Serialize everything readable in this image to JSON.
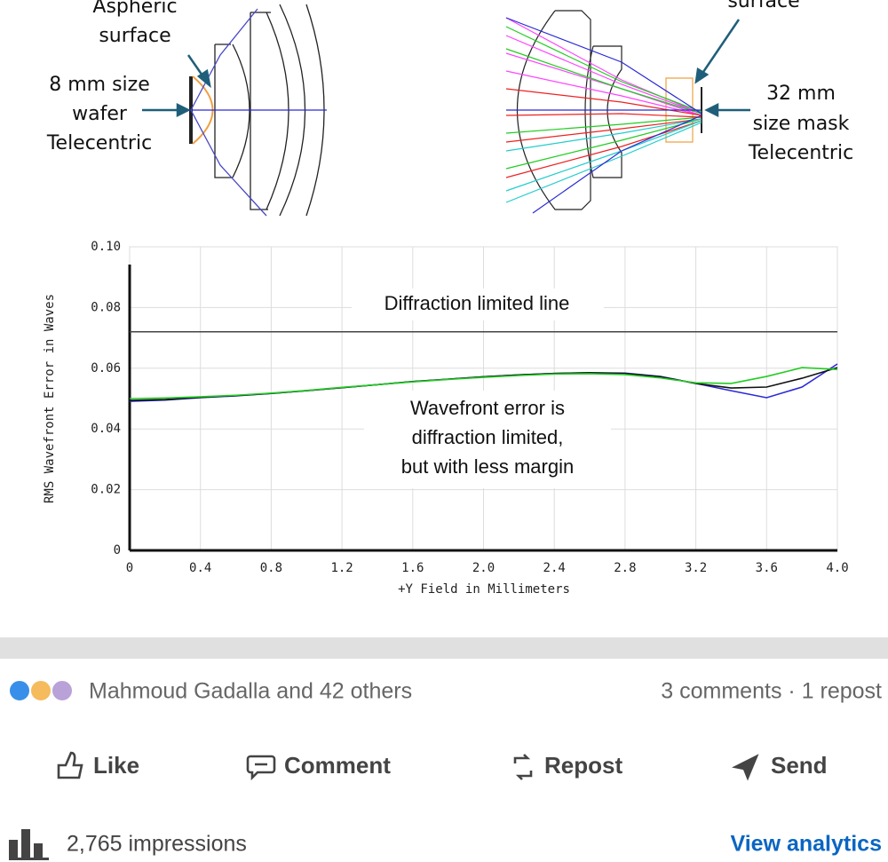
{
  "diagram": {
    "left_top_label": [
      "Aspheric",
      "surface"
    ],
    "left_side_label": [
      "8 mm size",
      "wafer",
      "Telecentric"
    ],
    "right_top_label": [
      "surface"
    ],
    "right_side_label": [
      "32 mm",
      "size mask",
      "Telecentric"
    ]
  },
  "chart_data": {
    "type": "line",
    "y_label": "RMS Wavefront Error in Waves",
    "x_label": "+Y Field in Millimeters",
    "xlim": [
      0,
      4
    ],
    "ylim": [
      0,
      0.1
    ],
    "xticks": [
      0,
      0.4,
      0.8,
      1.2,
      1.6,
      {
        "value": 2,
        "label": "2.0"
      },
      2.4,
      2.8,
      3.2,
      3.6,
      {
        "value": 4,
        "label": "4.0"
      }
    ],
    "yticks": [
      0,
      0.02,
      0.04,
      0.06,
      0.08,
      {
        "value": 0.1,
        "label": "0.10"
      }
    ],
    "grid": true,
    "reference_line": {
      "value": 0.072,
      "label": "Diffraction limited line",
      "color": "#444444"
    },
    "annotation": [
      "Wavefront error is",
      "diffraction limited,",
      "but with less margin"
    ],
    "x": [
      0,
      0.2,
      0.4,
      0.6,
      0.8,
      1.0,
      1.2,
      1.4,
      1.6,
      1.8,
      2.0,
      2.2,
      2.4,
      2.6,
      2.8,
      3.0,
      3.2,
      3.4,
      3.6,
      3.8,
      4.0
    ],
    "series": [
      {
        "color": "#2a2ad8",
        "values": [
          0.0491,
          0.0495,
          0.0503,
          0.0509,
          0.0517,
          0.0526,
          0.0536,
          0.0546,
          0.0556,
          0.0564,
          0.0572,
          0.0578,
          0.0583,
          0.0585,
          0.0584,
          0.0573,
          0.055,
          0.0526,
          0.0503,
          0.0538,
          0.0614
        ]
      },
      {
        "color": "#111111",
        "values": [
          0.0494,
          0.0497,
          0.0504,
          0.051,
          0.0517,
          0.0526,
          0.0536,
          0.0546,
          0.0556,
          0.0564,
          0.0572,
          0.0578,
          0.0583,
          0.0585,
          0.0583,
          0.0572,
          0.055,
          0.0535,
          0.0538,
          0.0567,
          0.0602
        ]
      },
      {
        "color": "#22cc22",
        "values": [
          0.05,
          0.0502,
          0.0506,
          0.0511,
          0.0518,
          0.0527,
          0.0537,
          0.0546,
          0.0555,
          0.0563,
          0.057,
          0.0576,
          0.0581,
          0.0582,
          0.0579,
          0.0568,
          0.0552,
          0.055,
          0.0573,
          0.0602,
          0.0596
        ]
      }
    ]
  },
  "post": {
    "reactions": "Mahmoud Gadalla and 42 others",
    "engagement": "3 comments · 1 repost",
    "actions": [
      "Like",
      "Comment",
      "Repost",
      "Send"
    ],
    "impressions": "2,765 impressions",
    "analytics": "View analytics"
  }
}
